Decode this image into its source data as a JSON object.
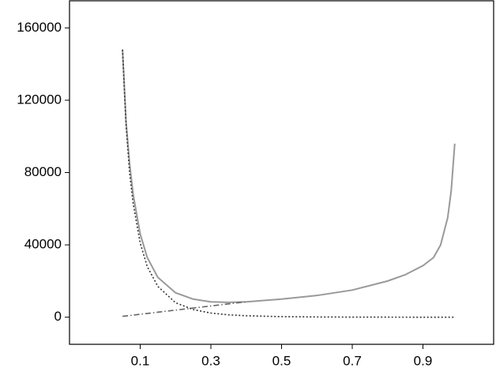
{
  "chart_data": {
    "type": "line",
    "x": [
      0.05,
      0.06,
      0.07,
      0.08,
      0.1,
      0.12,
      0.15,
      0.2,
      0.25,
      0.3,
      0.35,
      0.4,
      0.5,
      0.6,
      0.7,
      0.8,
      0.85,
      0.9,
      0.93,
      0.95,
      0.97,
      0.98,
      0.99
    ],
    "series": [
      {
        "color": "#999999",
        "dash": "solid",
        "values": [
          148000,
          108000,
          85000,
          68000,
          46000,
          33000,
          22000,
          13500,
          10000,
          8500,
          8200,
          8500,
          10000,
          12000,
          15000,
          20000,
          23500,
          28500,
          33000,
          40000,
          55000,
          70000,
          96000
        ]
      },
      {
        "color": "#333333",
        "dash": "dotted",
        "values": [
          148000,
          106000,
          80000,
          63000,
          41000,
          28000,
          17000,
          8000,
          4200,
          2300,
          1300,
          800,
          300,
          120,
          50,
          20,
          10,
          5,
          3,
          2,
          1,
          1,
          0
        ]
      },
      {
        "color": "#666666",
        "dash": "dashdot",
        "values": [
          460,
          690,
          920,
          1150,
          1610,
          2070,
          2760,
          3910,
          5060,
          6210,
          7360,
          8510,
          null,
          null,
          null,
          null,
          null,
          null,
          null,
          null,
          null,
          null,
          null
        ]
      }
    ],
    "xlim": [
      -0.1,
      1.1
    ],
    "xticks": [
      0.1,
      0.3,
      0.5,
      0.7,
      0.9
    ],
    "ylim": [
      -15000,
      175000
    ],
    "yticks": [
      0,
      40000,
      80000,
      120000,
      160000
    ],
    "grid": false
  }
}
